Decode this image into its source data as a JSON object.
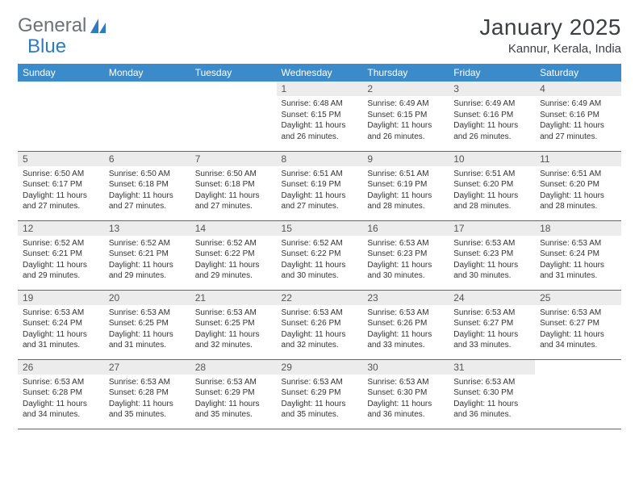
{
  "brand": {
    "part1": "General",
    "part2": "Blue"
  },
  "title": "January 2025",
  "location": "Kannur, Kerala, India",
  "colors": {
    "header_bg": "#3b8bca",
    "header_text": "#ffffff",
    "daynum_bg": "#ececec",
    "row_border": "#3b6fa0",
    "logo_gray": "#6b7278",
    "logo_blue": "#2f7bbf",
    "text": "#333333",
    "page_bg": "#ffffff"
  },
  "typography": {
    "title_fontsize": 28,
    "location_fontsize": 15,
    "weekday_fontsize": 12,
    "daynum_fontsize": 12,
    "body_fontsize": 10
  },
  "weekdays": [
    "Sunday",
    "Monday",
    "Tuesday",
    "Wednesday",
    "Thursday",
    "Friday",
    "Saturday"
  ],
  "grid": [
    [
      {
        "empty": true
      },
      {
        "empty": true
      },
      {
        "empty": true
      },
      {
        "n": "1",
        "sr": "6:48 AM",
        "ss": "6:15 PM",
        "dl": "11 hours and 26 minutes."
      },
      {
        "n": "2",
        "sr": "6:49 AM",
        "ss": "6:15 PM",
        "dl": "11 hours and 26 minutes."
      },
      {
        "n": "3",
        "sr": "6:49 AM",
        "ss": "6:16 PM",
        "dl": "11 hours and 26 minutes."
      },
      {
        "n": "4",
        "sr": "6:49 AM",
        "ss": "6:16 PM",
        "dl": "11 hours and 27 minutes."
      }
    ],
    [
      {
        "n": "5",
        "sr": "6:50 AM",
        "ss": "6:17 PM",
        "dl": "11 hours and 27 minutes."
      },
      {
        "n": "6",
        "sr": "6:50 AM",
        "ss": "6:18 PM",
        "dl": "11 hours and 27 minutes."
      },
      {
        "n": "7",
        "sr": "6:50 AM",
        "ss": "6:18 PM",
        "dl": "11 hours and 27 minutes."
      },
      {
        "n": "8",
        "sr": "6:51 AM",
        "ss": "6:19 PM",
        "dl": "11 hours and 27 minutes."
      },
      {
        "n": "9",
        "sr": "6:51 AM",
        "ss": "6:19 PM",
        "dl": "11 hours and 28 minutes."
      },
      {
        "n": "10",
        "sr": "6:51 AM",
        "ss": "6:20 PM",
        "dl": "11 hours and 28 minutes."
      },
      {
        "n": "11",
        "sr": "6:51 AM",
        "ss": "6:20 PM",
        "dl": "11 hours and 28 minutes."
      }
    ],
    [
      {
        "n": "12",
        "sr": "6:52 AM",
        "ss": "6:21 PM",
        "dl": "11 hours and 29 minutes."
      },
      {
        "n": "13",
        "sr": "6:52 AM",
        "ss": "6:21 PM",
        "dl": "11 hours and 29 minutes."
      },
      {
        "n": "14",
        "sr": "6:52 AM",
        "ss": "6:22 PM",
        "dl": "11 hours and 29 minutes."
      },
      {
        "n": "15",
        "sr": "6:52 AM",
        "ss": "6:22 PM",
        "dl": "11 hours and 30 minutes."
      },
      {
        "n": "16",
        "sr": "6:53 AM",
        "ss": "6:23 PM",
        "dl": "11 hours and 30 minutes."
      },
      {
        "n": "17",
        "sr": "6:53 AM",
        "ss": "6:23 PM",
        "dl": "11 hours and 30 minutes."
      },
      {
        "n": "18",
        "sr": "6:53 AM",
        "ss": "6:24 PM",
        "dl": "11 hours and 31 minutes."
      }
    ],
    [
      {
        "n": "19",
        "sr": "6:53 AM",
        "ss": "6:24 PM",
        "dl": "11 hours and 31 minutes."
      },
      {
        "n": "20",
        "sr": "6:53 AM",
        "ss": "6:25 PM",
        "dl": "11 hours and 31 minutes."
      },
      {
        "n": "21",
        "sr": "6:53 AM",
        "ss": "6:25 PM",
        "dl": "11 hours and 32 minutes."
      },
      {
        "n": "22",
        "sr": "6:53 AM",
        "ss": "6:26 PM",
        "dl": "11 hours and 32 minutes."
      },
      {
        "n": "23",
        "sr": "6:53 AM",
        "ss": "6:26 PM",
        "dl": "11 hours and 33 minutes."
      },
      {
        "n": "24",
        "sr": "6:53 AM",
        "ss": "6:27 PM",
        "dl": "11 hours and 33 minutes."
      },
      {
        "n": "25",
        "sr": "6:53 AM",
        "ss": "6:27 PM",
        "dl": "11 hours and 34 minutes."
      }
    ],
    [
      {
        "n": "26",
        "sr": "6:53 AM",
        "ss": "6:28 PM",
        "dl": "11 hours and 34 minutes."
      },
      {
        "n": "27",
        "sr": "6:53 AM",
        "ss": "6:28 PM",
        "dl": "11 hours and 35 minutes."
      },
      {
        "n": "28",
        "sr": "6:53 AM",
        "ss": "6:29 PM",
        "dl": "11 hours and 35 minutes."
      },
      {
        "n": "29",
        "sr": "6:53 AM",
        "ss": "6:29 PM",
        "dl": "11 hours and 35 minutes."
      },
      {
        "n": "30",
        "sr": "6:53 AM",
        "ss": "6:30 PM",
        "dl": "11 hours and 36 minutes."
      },
      {
        "n": "31",
        "sr": "6:53 AM",
        "ss": "6:30 PM",
        "dl": "11 hours and 36 minutes."
      },
      {
        "empty": true
      }
    ]
  ]
}
